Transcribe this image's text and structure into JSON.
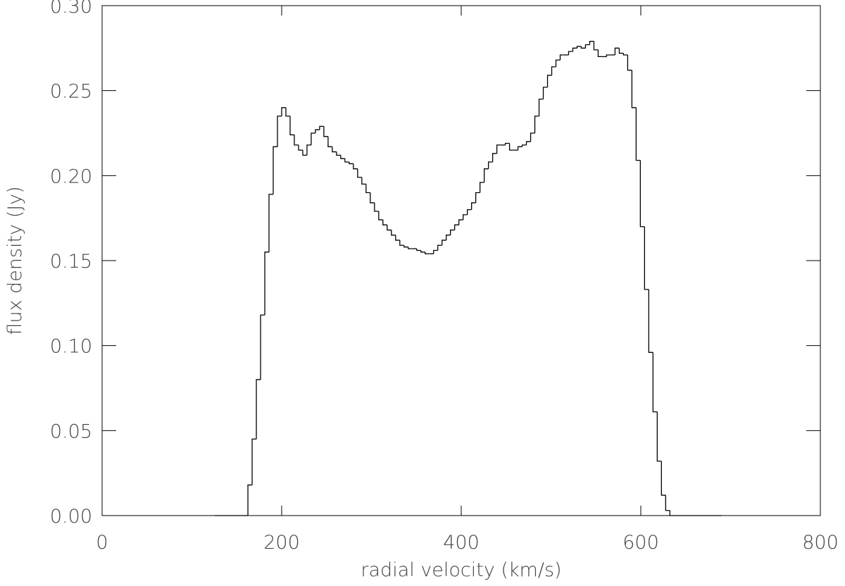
{
  "chart_data": {
    "type": "histogram",
    "color": "#000000",
    "xlabel": "radial velocity (km/s)",
    "ylabel": "flux density (Jy)",
    "xlim": [
      0,
      800
    ],
    "xticks": [
      0,
      200,
      400,
      600,
      800
    ],
    "ylim": [
      0,
      0.3
    ],
    "yticks": [
      {
        "value": 0,
        "label": "0.00"
      },
      {
        "value": 0.05,
        "label": "0.05"
      },
      {
        "value": 0.1,
        "label": "0.10"
      },
      {
        "value": 0.15,
        "label": "0.15"
      },
      {
        "value": 0.2,
        "label": "0.20"
      },
      {
        "value": 0.25,
        "label": "0.25"
      },
      {
        "value": 0.3,
        "label": "0.30"
      }
    ],
    "bins": [
      125.5,
      162.4,
      167.1,
      171.8,
      176.5,
      181.2,
      185.9,
      190.6,
      195.3,
      200.0,
      204.7,
      209.4,
      214.1,
      218.8,
      223.5,
      228.2,
      232.9,
      237.6,
      242.3,
      247.0,
      251.7,
      256.4,
      261.1,
      265.8,
      270.5,
      275.2,
      279.9,
      284.6,
      289.3,
      294.0,
      298.7,
      303.4,
      308.1,
      312.8,
      317.5,
      322.2,
      326.9,
      331.6,
      336.3,
      341.0,
      345.7,
      350.4,
      355.1,
      359.8,
      364.5,
      369.2,
      373.9,
      378.6,
      383.3,
      388.0,
      392.7,
      397.4,
      402.1,
      406.8,
      411.5,
      416.2,
      420.9,
      425.6,
      430.3,
      435.0,
      439.7,
      444.4,
      449.1,
      453.8,
      458.5,
      463.2,
      467.9,
      472.6,
      477.3,
      482.0,
      486.7,
      491.4,
      496.1,
      500.8,
      505.5,
      510.2,
      514.9,
      519.6,
      524.3,
      529.0,
      533.7,
      538.4,
      543.1,
      547.8,
      552.5,
      557.2,
      561.9,
      566.6,
      571.3,
      576.0,
      580.7,
      585.4,
      590.1,
      594.8,
      599.5,
      604.2,
      608.9,
      613.6,
      618.3,
      623.0,
      627.7,
      632.4,
      637.1,
      690.0
    ],
    "values": [
      0,
      0.018,
      0.045,
      0.08,
      0.118,
      0.155,
      0.189,
      0.217,
      0.235,
      0.24,
      0.235,
      0.224,
      0.218,
      0.215,
      0.212,
      0.218,
      0.225,
      0.227,
      0.229,
      0.223,
      0.217,
      0.214,
      0.212,
      0.21,
      0.208,
      0.207,
      0.204,
      0.199,
      0.195,
      0.19,
      0.184,
      0.179,
      0.174,
      0.171,
      0.168,
      0.165,
      0.162,
      0.159,
      0.158,
      0.157,
      0.157,
      0.156,
      0.155,
      0.154,
      0.154,
      0.156,
      0.159,
      0.162,
      0.165,
      0.168,
      0.171,
      0.174,
      0.177,
      0.18,
      0.184,
      0.19,
      0.196,
      0.204,
      0.208,
      0.213,
      0.218,
      0.218,
      0.219,
      0.215,
      0.215,
      0.217,
      0.218,
      0.22,
      0.225,
      0.235,
      0.245,
      0.252,
      0.259,
      0.264,
      0.268,
      0.271,
      0.271,
      0.273,
      0.275,
      0.276,
      0.275,
      0.277,
      0.279,
      0.274,
      0.27,
      0.27,
      0.271,
      0.271,
      0.275,
      0.272,
      0.271,
      0.262,
      0.24,
      0.209,
      0.17,
      0.133,
      0.096,
      0.061,
      0.032,
      0.012,
      0.003,
      0,
      0
    ]
  }
}
